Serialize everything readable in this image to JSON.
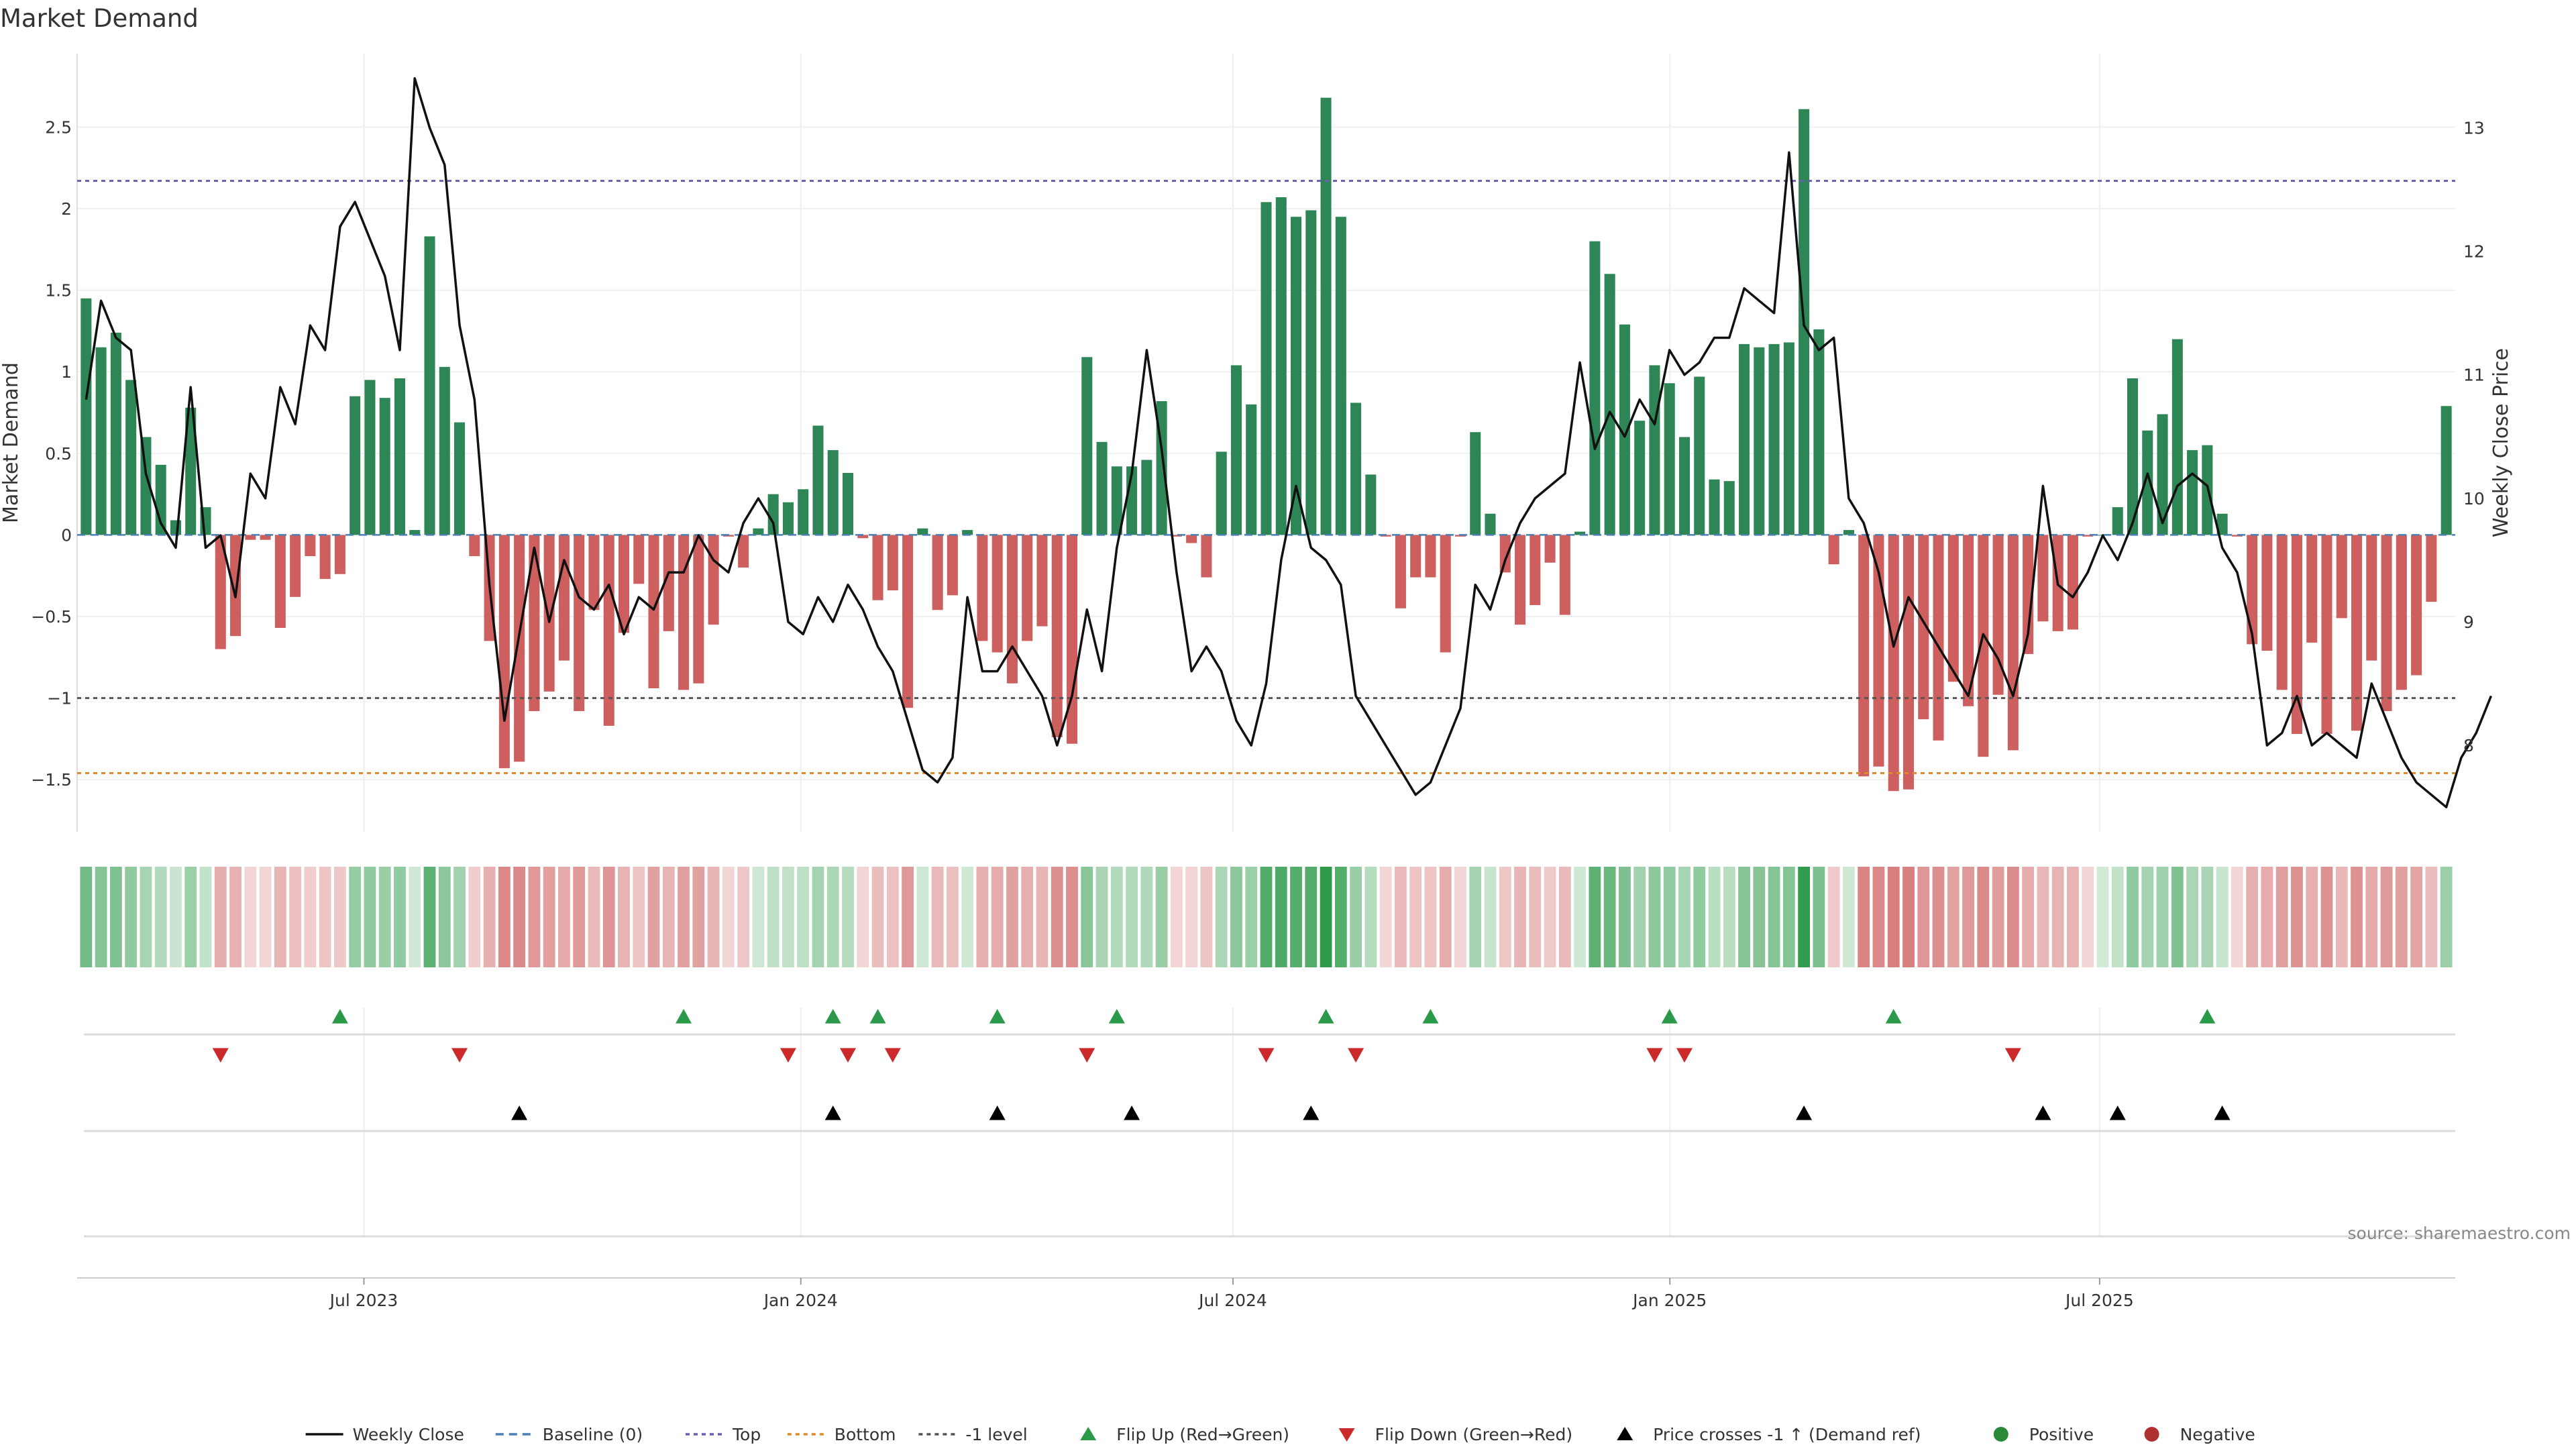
{
  "chart_data": {
    "type": "bar",
    "title": "Market Demand",
    "source": "source: sharemaestro.com",
    "ylabel_left": "Market Demand",
    "ylabel_right": "Weekly Close Price",
    "ylim": [
      -1.82,
      2.95
    ],
    "y2lim": [
      7.3,
      13.6
    ],
    "yticks": [
      -1.5,
      -1,
      -0.5,
      0,
      0.5,
      1,
      1.5,
      2,
      2.5
    ],
    "ytick_labels": [
      "−1.5",
      "−1",
      "−0.5",
      "0",
      "0.5",
      "1",
      "1.5",
      "2",
      "2.5"
    ],
    "y2ticks": [
      8,
      9,
      10,
      11,
      12,
      13
    ],
    "y2tick_labels": [
      "8",
      "9",
      "10",
      "11",
      "12",
      "13"
    ],
    "x_start": "2023-03-06",
    "x_end": "2025-11-24",
    "xticks": [
      "2023-07-01",
      "2024-01-01",
      "2024-07-01",
      "2025-01-01",
      "2025-07-01"
    ],
    "xtick_labels": [
      "Jul 2023",
      "Jan 2024",
      "Jul 2024",
      "Jan 2025",
      "Jul 2025"
    ],
    "reference_lines": [
      {
        "name": "Top",
        "value": 2.17,
        "color": "#6b5fb5"
      },
      {
        "name": "Bottom",
        "value": -1.46,
        "color": "#e08a2c"
      },
      {
        "name": "-1 level",
        "value": -1.0,
        "color": "#555555"
      }
    ],
    "demand": [
      1.45,
      1.15,
      1.24,
      0.95,
      0.6,
      0.43,
      0.09,
      0.78,
      0.17,
      -0.7,
      -0.62,
      -0.03,
      -0.03,
      -0.57,
      -0.38,
      -0.13,
      -0.27,
      -0.24,
      0.85,
      0.95,
      0.84,
      0.96,
      0.03,
      1.83,
      1.03,
      0.69,
      -0.13,
      -0.65,
      -1.43,
      -1.39,
      -1.08,
      -0.96,
      -0.77,
      -1.08,
      -0.46,
      -1.17,
      -0.6,
      -0.3,
      -0.94,
      -0.59,
      -0.95,
      -0.91,
      -0.55,
      -0.01,
      -0.2,
      0.04,
      0.25,
      0.2,
      0.28,
      0.67,
      0.52,
      0.38,
      -0.02,
      -0.4,
      -0.34,
      -1.06,
      0.04,
      -0.46,
      -0.37,
      0.03,
      -0.65,
      -0.72,
      -0.91,
      -0.65,
      -0.56,
      -1.24,
      -1.28,
      1.09,
      0.57,
      0.42,
      0.42,
      0.46,
      0.82,
      -0.01,
      -0.05,
      -0.26,
      0.51,
      1.04,
      0.8,
      2.04,
      2.07,
      1.95,
      1.99,
      2.68,
      1.95,
      0.81,
      0.37,
      -0.01,
      -0.45,
      -0.26,
      -0.26,
      -0.72,
      -0.01,
      0.63,
      0.13,
      -0.23,
      -0.55,
      -0.43,
      -0.17,
      -0.49,
      0.02,
      1.8,
      1.6,
      1.29,
      0.7,
      1.04,
      0.93,
      0.6,
      0.97,
      0.34,
      0.33,
      1.17,
      1.15,
      1.17,
      1.18,
      2.61,
      1.26,
      -0.18,
      0.03,
      -1.48,
      -1.42,
      -1.57,
      -1.56,
      -1.13,
      -1.26,
      -0.9,
      -1.05,
      -1.36,
      -0.98,
      -1.32,
      -0.73,
      -0.53,
      -0.59,
      -0.58,
      -0.01,
      0.0,
      0.17,
      0.96,
      0.64,
      0.74,
      1.2,
      0.52,
      0.55,
      0.13,
      -0.01,
      -0.67,
      -0.71,
      -0.95,
      -1.22,
      -0.66,
      -1.22,
      -0.51,
      -1.2,
      -0.77,
      -1.08,
      -0.95,
      -0.86,
      -0.41,
      0.79
    ],
    "close": [
      10.8,
      11.6,
      11.3,
      11.2,
      10.2,
      9.8,
      9.6,
      10.9,
      9.6,
      9.7,
      9.2,
      10.2,
      10.0,
      10.9,
      10.6,
      11.4,
      11.2,
      12.2,
      12.4,
      12.1,
      11.8,
      11.2,
      13.4,
      13.0,
      12.7,
      11.4,
      10.8,
      9.3,
      8.2,
      8.9,
      9.6,
      9.0,
      9.5,
      9.2,
      9.1,
      9.3,
      8.9,
      9.2,
      9.1,
      9.4,
      9.4,
      9.7,
      9.5,
      9.4,
      9.8,
      10.0,
      9.8,
      9.0,
      8.9,
      9.2,
      9.0,
      9.3,
      9.1,
      8.8,
      8.6,
      8.2,
      7.8,
      7.7,
      7.9,
      9.2,
      8.6,
      8.6,
      8.8,
      8.6,
      8.4,
      8.0,
      8.4,
      9.1,
      8.6,
      9.6,
      10.2,
      11.2,
      10.4,
      9.4,
      8.6,
      8.8,
      8.6,
      8.2,
      8.0,
      8.5,
      9.5,
      10.1,
      9.6,
      9.5,
      9.3,
      8.4,
      8.2,
      8.0,
      7.8,
      7.6,
      7.7,
      8.0,
      8.3,
      9.3,
      9.1,
      9.5,
      9.8,
      10.0,
      10.1,
      10.2,
      11.1,
      10.4,
      10.7,
      10.5,
      10.8,
      10.6,
      11.2,
      11.0,
      11.1,
      11.3,
      11.3,
      11.7,
      11.6,
      11.5,
      12.8,
      11.4,
      11.2,
      11.3,
      10.0,
      9.8,
      9.4,
      8.8,
      9.2,
      9.0,
      8.8,
      8.6,
      8.4,
      8.9,
      8.7,
      8.4,
      8.9,
      10.1,
      9.3,
      9.2,
      9.4,
      9.7,
      9.5,
      9.8,
      10.2,
      9.8,
      10.1,
      10.2,
      10.1,
      9.6,
      9.4,
      8.9,
      8.0,
      8.1,
      8.4,
      8.0,
      8.1,
      8.0,
      7.9,
      8.5,
      8.2,
      7.9,
      7.7,
      7.6,
      7.5,
      7.9,
      8.1,
      8.4
    ],
    "flip_up_indices": [
      17,
      40,
      50,
      53,
      61,
      69,
      83,
      90,
      106,
      121,
      142
    ],
    "flip_down_indices": [
      9,
      25,
      47,
      51,
      54,
      67,
      79,
      85,
      105,
      107,
      129
    ],
    "cross_indices": [
      29,
      50,
      61,
      70,
      82,
      115,
      131,
      136,
      143
    ],
    "legend": [
      {
        "label": "Weekly Close",
        "marker": "solid-line",
        "color": "#111111"
      },
      {
        "label": "Baseline (0)",
        "marker": "dashed-line",
        "color": "#4a7fb5"
      },
      {
        "label": "Top",
        "marker": "dotted-line",
        "color": "#6b5fb5"
      },
      {
        "label": "Bottom",
        "marker": "dotted-line",
        "color": "#e08a2c"
      },
      {
        "label": "-1 level",
        "marker": "dotted-line",
        "color": "#555555"
      },
      {
        "label": "Flip Up (Red→Green)",
        "marker": "triangle-up",
        "color": "#2a9a4a"
      },
      {
        "label": "Flip Down (Green→Red)",
        "marker": "triangle-down",
        "color": "#cc2a2a"
      },
      {
        "label": "Price crosses -1 ↑ (Demand ref)",
        "marker": "triangle-up",
        "color": "#000000"
      },
      {
        "label": "Positive",
        "marker": "circle",
        "color": "#2a8a3a"
      },
      {
        "label": "Negative",
        "marker": "circle",
        "color": "#b03030"
      }
    ],
    "colors": {
      "positive_bar": "#2e8555",
      "negative_bar": "#cd5f5f",
      "price_line": "#111111",
      "heat_positive": "#2e9a4a",
      "heat_negative": "#c84a4a"
    }
  }
}
